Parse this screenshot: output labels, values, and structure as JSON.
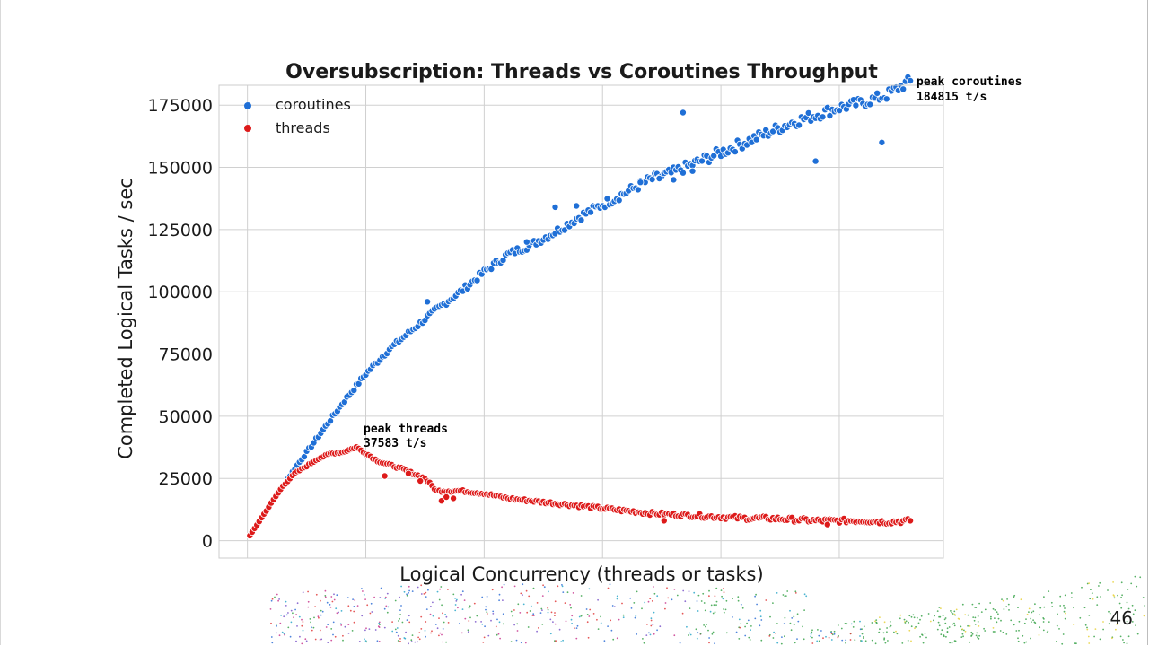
{
  "slide": {
    "page_number": "46"
  },
  "colors": {
    "coroutines": "#1f6fd6",
    "threads": "#dd1a1a",
    "grid": "#d0d0d0",
    "axes_frame": "#cccccc"
  },
  "decoration": {
    "icon": "scatter-dots-decoration-icon"
  },
  "chart_data": {
    "type": "scatter",
    "title": "Oversubscription: Threads vs Coroutines Throughput",
    "xlabel": "Logical Concurrency (threads or tasks)",
    "ylabel": "Completed Logical Tasks / sec",
    "ylim": [
      -7000,
      183000
    ],
    "yticks": [
      0,
      25000,
      50000,
      75000,
      100000,
      125000,
      150000,
      175000
    ],
    "x_tick_labels_shown": false,
    "grid": true,
    "legend_placement": "top-left",
    "legend": [
      "coroutines",
      "threads"
    ],
    "series": [
      {
        "name": "coroutines",
        "summary_points": [
          [
            1,
            2000
          ],
          [
            10,
            15000
          ],
          [
            20,
            29000
          ],
          [
            30,
            42000
          ],
          [
            40,
            55000
          ],
          [
            50,
            67000
          ],
          [
            60,
            77000
          ],
          [
            70,
            85000
          ],
          [
            80,
            93000
          ],
          [
            90,
            100000
          ],
          [
            100,
            108000
          ],
          [
            110,
            115000
          ],
          [
            120,
            119000
          ],
          [
            130,
            124000
          ],
          [
            140,
            130000
          ],
          [
            150,
            135000
          ],
          [
            160,
            140000
          ],
          [
            170,
            145000
          ],
          [
            180,
            148000
          ],
          [
            190,
            152000
          ],
          [
            200,
            156000
          ],
          [
            210,
            160000
          ],
          [
            220,
            164000
          ],
          [
            230,
            168000
          ],
          [
            240,
            171000
          ],
          [
            250,
            174000
          ],
          [
            260,
            176000
          ],
          [
            270,
            179000
          ],
          [
            280,
            184815
          ]
        ],
        "outliers": [
          [
            76,
            96000
          ],
          [
            118,
            120000
          ],
          [
            130,
            134000
          ],
          [
            139,
            134500
          ],
          [
            166,
            144000
          ],
          [
            174,
            145500
          ],
          [
            180,
            145000
          ],
          [
            184,
            172000
          ],
          [
            188,
            148500
          ],
          [
            240,
            152500
          ],
          [
            268,
            160000
          ]
        ]
      },
      {
        "name": "threads",
        "summary_points": [
          [
            1,
            2000
          ],
          [
            10,
            15000
          ],
          [
            15,
            22000
          ],
          [
            20,
            27000
          ],
          [
            25,
            30000
          ],
          [
            30,
            33000
          ],
          [
            35,
            35000
          ],
          [
            40,
            35500
          ],
          [
            46,
            37583
          ],
          [
            55,
            32000
          ],
          [
            65,
            29000
          ],
          [
            75,
            25000
          ],
          [
            80,
            20000
          ],
          [
            90,
            20000
          ],
          [
            100,
            19000
          ],
          [
            110,
            17000
          ],
          [
            120,
            16000
          ],
          [
            130,
            15000
          ],
          [
            140,
            14000
          ],
          [
            150,
            13000
          ],
          [
            160,
            12000
          ],
          [
            170,
            11000
          ],
          [
            180,
            10500
          ],
          [
            190,
            10000
          ],
          [
            200,
            9500
          ],
          [
            210,
            9000
          ],
          [
            220,
            9000
          ],
          [
            230,
            8500
          ],
          [
            240,
            8000
          ],
          [
            250,
            8000
          ],
          [
            260,
            8000
          ],
          [
            270,
            7500
          ],
          [
            280,
            8000
          ]
        ],
        "outliers": [
          [
            58,
            26000
          ],
          [
            68,
            27000
          ],
          [
            73,
            24000
          ],
          [
            82,
            16000
          ],
          [
            84,
            17500
          ],
          [
            87,
            17000
          ],
          [
            176,
            8000
          ],
          [
            245,
            6500
          ]
        ]
      }
    ],
    "annotations": [
      {
        "line1": "peak coroutines",
        "line2": "184815 t/s",
        "x": 280,
        "y": 184815,
        "series": "coroutines"
      },
      {
        "line1": "peak threads",
        "line2": "37583 t/s",
        "x": 46,
        "y": 37583,
        "series": "threads"
      }
    ],
    "xlim": [
      -12,
      294
    ]
  }
}
